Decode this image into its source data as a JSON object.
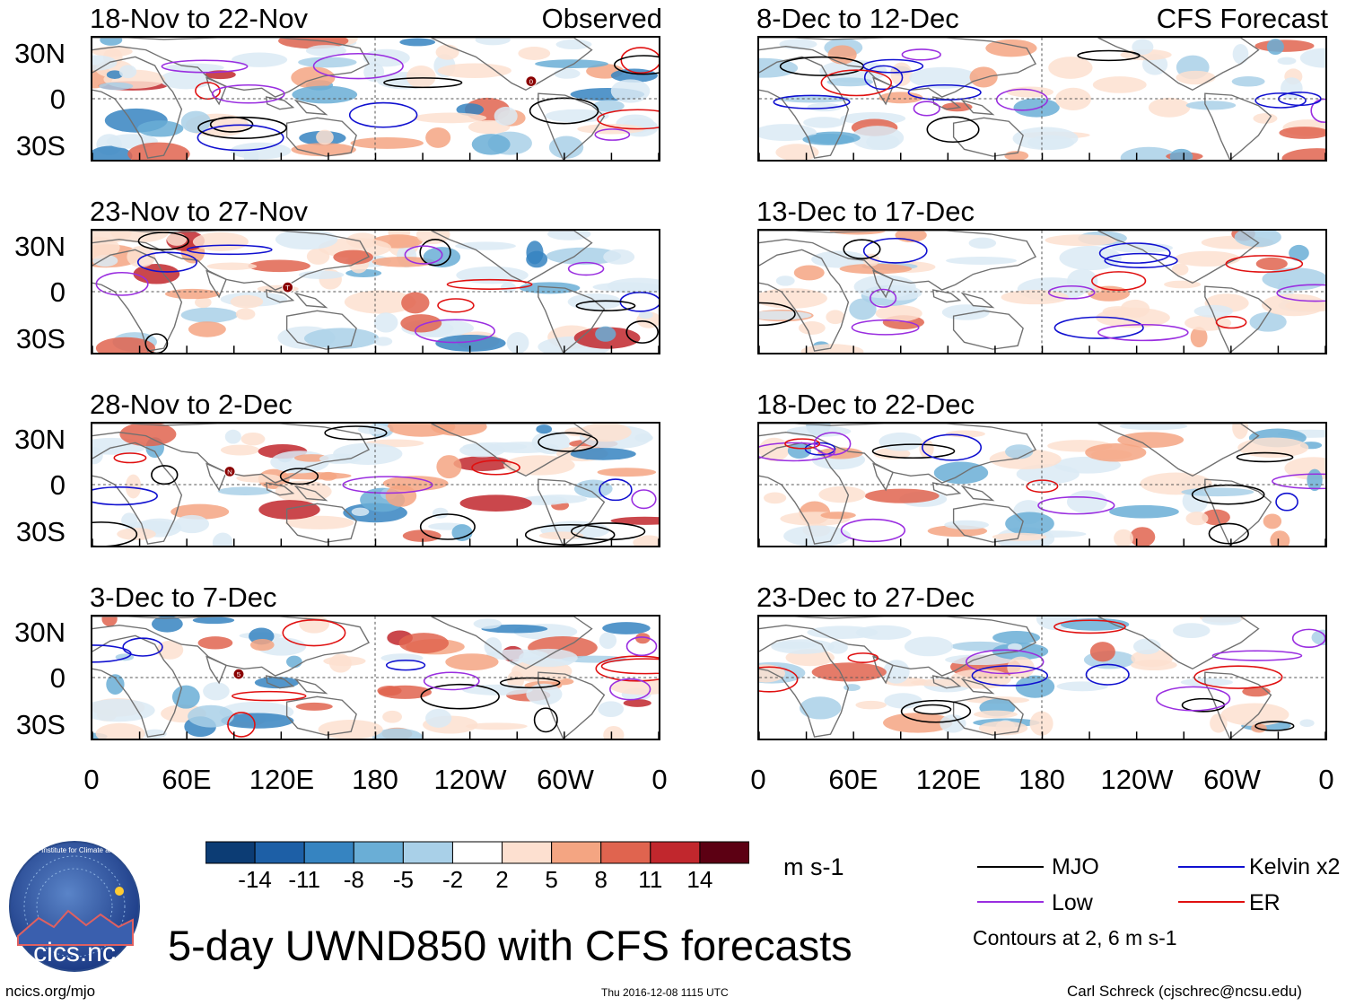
{
  "panels": [
    {
      "period": "18-Nov to 22-Nov",
      "tag": "Observed"
    },
    {
      "period": "23-Nov to 27-Nov"
    },
    {
      "period": "28-Nov to 2-Dec"
    },
    {
      "period": "3-Dec to 7-Dec"
    },
    {
      "period": "8-Dec to 12-Dec",
      "tag": "CFS Forecast"
    },
    {
      "period": "13-Dec to 17-Dec"
    },
    {
      "period": "18-Dec to 22-Dec"
    },
    {
      "period": "23-Dec to 27-Dec"
    }
  ],
  "storm_markers": [
    "0",
    "T",
    "N",
    "5"
  ],
  "axes": {
    "lat_labels": [
      "30N",
      "0",
      "30S"
    ],
    "lon_labels": [
      "0",
      "60E",
      "120E",
      "180",
      "120W",
      "60W",
      "0"
    ]
  },
  "colorbar": {
    "labels": [
      "-14",
      "-11",
      "-8",
      "-5",
      "-2",
      "2",
      "5",
      "8",
      "11",
      "14"
    ],
    "colors": [
      "#0c3c74",
      "#1d5fa6",
      "#3684c1",
      "#6aaed6",
      "#a9d0e8",
      "#dbeaf4",
      "#ffffff",
      "#fde0d0",
      "#f4a582",
      "#e0644f",
      "#c1272d",
      "#970c1c",
      "#5c0013"
    ],
    "units": "m s-1"
  },
  "legend": {
    "items": [
      {
        "label": "MJO",
        "color": "#000000"
      },
      {
        "label": "Kelvin x2",
        "color": "#1010d0"
      },
      {
        "label": "Low",
        "color": "#9a2ee0"
      },
      {
        "label": "ER",
        "color": "#e01010"
      }
    ],
    "note": "Contours at 2, 6 m s-1"
  },
  "logo": {
    "text": "cics.nc",
    "ring_text": "Cooperative Institute for Climate and Satellites"
  },
  "title": "5-day UWND850 with CFS forecasts",
  "footer": {
    "url": "ncics.org/mjo",
    "timestamp": "Thu 2016-12-08 1115 UTC",
    "author": "Carl Schreck (cjschrec@ncsu.edu)"
  }
}
